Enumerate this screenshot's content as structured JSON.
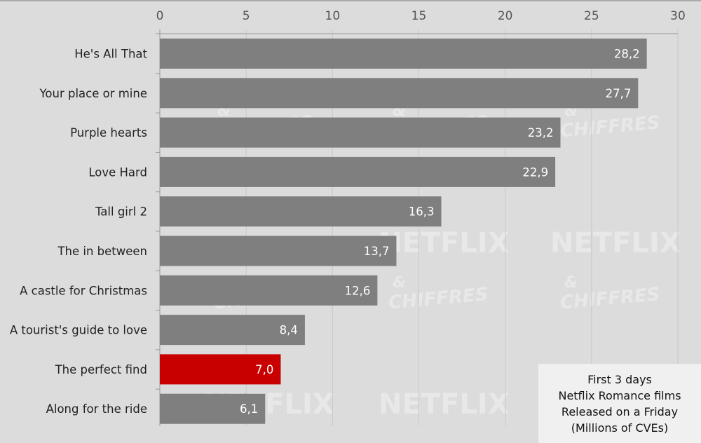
{
  "chart_data": {
    "type": "bar",
    "orientation": "horizontal",
    "categories": [
      "He's All That",
      "Your place or mine",
      "Purple hearts",
      "Love Hard",
      "Tall girl 2",
      "The in between",
      "A castle for Christmas",
      "A tourist's guide to love",
      "The perfect find",
      "Along for the ride"
    ],
    "values": [
      28.2,
      27.7,
      23.2,
      22.9,
      16.3,
      13.7,
      12.6,
      8.4,
      7.0,
      6.1
    ],
    "value_labels": [
      "28,2",
      "27,7",
      "23,2",
      "22,9",
      "16,3",
      "13,7",
      "12,6",
      "8,4",
      "7,0",
      "6,1"
    ],
    "highlight_index": 8,
    "xlim": [
      0,
      30
    ],
    "xticks": [
      "0",
      "5",
      "10",
      "15",
      "20",
      "25",
      "30"
    ],
    "x_axis_position": "top",
    "grid": true,
    "legend_lines": [
      "First 3 days",
      "Netflix Romance films",
      "Released on a Friday",
      "(Millions of CVEs)"
    ],
    "legend_placement": "bottom-right",
    "colors": {
      "background": "#dcdcdc",
      "bar": "#7f7f7f",
      "highlight": "#c80000",
      "grid": "#c8c8c8",
      "legend_bg": "#f0f0f0"
    },
    "watermark": [
      "NETFLIX",
      "&",
      "CHIFFRES"
    ]
  }
}
